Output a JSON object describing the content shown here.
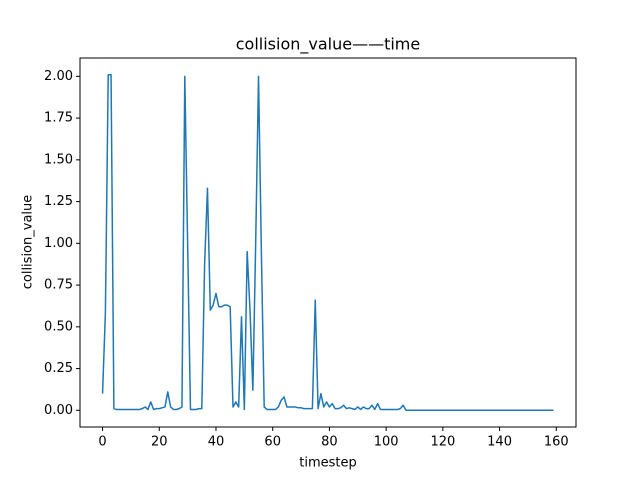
{
  "chart_data": {
    "type": "line",
    "title": "collision_value——time",
    "xlabel": "timestep",
    "ylabel": "collision_value",
    "color": "#1f77b4",
    "x": [
      0,
      1,
      2,
      3,
      4,
      5,
      6,
      7,
      8,
      9,
      10,
      11,
      12,
      13,
      14,
      15,
      16,
      17,
      18,
      19,
      20,
      21,
      22,
      23,
      24,
      25,
      26,
      27,
      28,
      29,
      30,
      31,
      32,
      33,
      34,
      35,
      36,
      37,
      38,
      39,
      40,
      41,
      42,
      43,
      44,
      45,
      46,
      47,
      48,
      49,
      50,
      51,
      52,
      53,
      54,
      55,
      56,
      57,
      58,
      59,
      60,
      61,
      62,
      63,
      64,
      65,
      66,
      67,
      68,
      69,
      70,
      71,
      72,
      73,
      74,
      75,
      76,
      77,
      78,
      79,
      80,
      81,
      82,
      83,
      84,
      85,
      86,
      87,
      88,
      89,
      90,
      91,
      92,
      93,
      94,
      95,
      96,
      97,
      98,
      99,
      100,
      101,
      102,
      103,
      104,
      105,
      106,
      107,
      108,
      109,
      110,
      111,
      112,
      113,
      114,
      115,
      116,
      117,
      118,
      119,
      120,
      121,
      122,
      123,
      124,
      125,
      126,
      127,
      128,
      129,
      130,
      131,
      132,
      133,
      134,
      135,
      136,
      137,
      138,
      139,
      140,
      141,
      142,
      143,
      144,
      145,
      146,
      147,
      148,
      149,
      150,
      151,
      152,
      153,
      154,
      155,
      156,
      157,
      158,
      159
    ],
    "values": [
      0.1,
      0.58,
      2.01,
      2.01,
      0.01,
      0.005,
      0.005,
      0.005,
      0.005,
      0.005,
      0.005,
      0.005,
      0.005,
      0.005,
      0.01,
      0.02,
      0.005,
      0.05,
      0.005,
      0.01,
      0.01,
      0.015,
      0.02,
      0.11,
      0.02,
      0.005,
      0.005,
      0.01,
      0.02,
      2.0,
      1.0,
      0.005,
      0.005,
      0.005,
      0.01,
      0.01,
      0.88,
      1.33,
      0.6,
      0.63,
      0.7,
      0.62,
      0.62,
      0.63,
      0.63,
      0.62,
      0.02,
      0.05,
      0.02,
      0.56,
      0.005,
      0.95,
      0.6,
      0.12,
      1.0,
      2.0,
      0.95,
      0.02,
      0.005,
      0.005,
      0.005,
      0.005,
      0.02,
      0.06,
      0.08,
      0.02,
      0.02,
      0.02,
      0.02,
      0.015,
      0.015,
      0.01,
      0.01,
      0.01,
      0.01,
      0.66,
      0.01,
      0.1,
      0.02,
      0.05,
      0.02,
      0.04,
      0.01,
      0.01,
      0.015,
      0.03,
      0.01,
      0.015,
      0.01,
      0.005,
      0.02,
      0.005,
      0.02,
      0.01,
      0.01,
      0.03,
      0.005,
      0.04,
      0.005,
      0.005,
      0.005,
      0.005,
      0.005,
      0.005,
      0.005,
      0.01,
      0.03,
      0,
      0,
      0,
      0,
      0,
      0,
      0,
      0,
      0,
      0,
      0,
      0,
      0,
      0,
      0,
      0,
      0,
      0,
      0,
      0,
      0,
      0,
      0,
      0,
      0,
      0,
      0,
      0,
      0,
      0,
      0,
      0,
      0,
      0,
      0,
      0,
      0,
      0,
      0,
      0,
      0,
      0,
      0,
      0,
      0,
      0,
      0,
      0,
      0,
      0,
      0,
      0,
      0
    ],
    "xlim": [
      -7.95,
      166.95
    ],
    "xticks": [
      0,
      20,
      40,
      60,
      80,
      100,
      120,
      140,
      160
    ],
    "ylim": [
      -0.1,
      2.11
    ],
    "yticks": [
      {
        "value": 0,
        "label": "0.00"
      },
      {
        "value": 0.25,
        "label": "0.25"
      },
      {
        "value": 0.5,
        "label": "0.50"
      },
      {
        "value": 0.75,
        "label": "0.75"
      },
      {
        "value": 1,
        "label": "1.00"
      },
      {
        "value": 1.25,
        "label": "1.25"
      },
      {
        "value": 1.5,
        "label": "1.50"
      },
      {
        "value": 1.75,
        "label": "1.75"
      },
      {
        "value": 2,
        "label": "2.00"
      }
    ]
  }
}
